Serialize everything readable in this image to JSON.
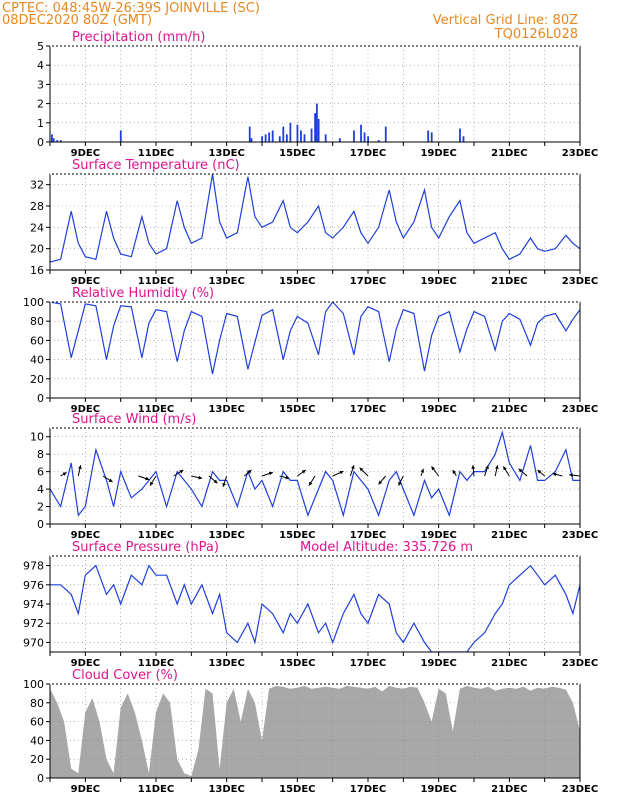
{
  "header": {
    "line1": "CPTEC:   048:45W-26:39S   JOINVILLE (SC)",
    "line2": "08DEC2020 80Z (GMT)",
    "right1": "Vertical Grid Line: 80Z",
    "right2": "TQ0126L028"
  },
  "colors": {
    "header": "#e8871e",
    "title": "#e0138c",
    "series": "#1f3fdc",
    "cloud": "#a8a8a8",
    "grid": "#888888"
  },
  "chart_data": [
    {
      "type": "bar",
      "title": "Precipitation (mm/h)",
      "ylim": [
        0,
        5
      ],
      "yticks": [
        "0",
        "1",
        "2",
        "3",
        "4",
        "5"
      ],
      "xlim": [
        8,
        23
      ],
      "xticks": [
        "9DEC",
        "11DEC",
        "13DEC",
        "15DEC",
        "17DEC",
        "19DEC",
        "21DEC",
        "23DEC"
      ],
      "x": [
        8.05,
        8.1,
        8.2,
        8.3,
        10.0,
        13.65,
        13.7,
        14.0,
        14.1,
        14.2,
        14.3,
        14.5,
        14.6,
        14.7,
        14.8,
        15.0,
        15.1,
        15.2,
        15.4,
        15.5,
        15.55,
        15.6,
        15.8,
        16.2,
        16.6,
        16.8,
        16.9,
        17.0,
        17.3,
        17.5,
        18.7,
        18.8,
        19.6,
        19.7
      ],
      "values": [
        0.4,
        0.2,
        0.1,
        0.1,
        0.6,
        0.8,
        0.2,
        0.3,
        0.4,
        0.5,
        0.6,
        0.3,
        0.8,
        0.4,
        1.0,
        0.9,
        0.6,
        0.4,
        0.7,
        1.5,
        2.0,
        1.2,
        0.4,
        0.2,
        0.6,
        0.9,
        0.5,
        0.3,
        0.1,
        0.8,
        0.6,
        0.5,
        0.7,
        0.3
      ]
    },
    {
      "type": "line",
      "title": "Surface Temperature (nC)",
      "ylim": [
        16,
        34
      ],
      "yticks": [
        "16",
        "20",
        "24",
        "28",
        "32"
      ],
      "xlim": [
        8,
        23
      ],
      "xticks": [
        "9DEC",
        "11DEC",
        "13DEC",
        "15DEC",
        "17DEC",
        "19DEC",
        "21DEC",
        "23DEC"
      ],
      "x": [
        8.0,
        8.3,
        8.6,
        8.8,
        9.0,
        9.3,
        9.6,
        9.8,
        10.0,
        10.3,
        10.6,
        10.8,
        11.0,
        11.3,
        11.6,
        11.8,
        12.0,
        12.3,
        12.6,
        12.8,
        13.0,
        13.3,
        13.6,
        13.8,
        14.0,
        14.3,
        14.6,
        14.8,
        15.0,
        15.3,
        15.6,
        15.8,
        16.0,
        16.3,
        16.6,
        16.8,
        17.0,
        17.3,
        17.6,
        17.8,
        18.0,
        18.3,
        18.6,
        18.8,
        19.0,
        19.3,
        19.6,
        19.8,
        20.0,
        20.3,
        20.6,
        20.8,
        21.0,
        21.3,
        21.6,
        21.8,
        22.0,
        22.3,
        22.6,
        22.8,
        23.0
      ],
      "values": [
        17.5,
        18,
        27,
        21,
        18.5,
        18,
        27,
        22,
        19,
        18.5,
        26,
        21,
        19,
        20,
        29,
        24,
        21,
        22,
        34,
        25,
        22,
        23,
        33.5,
        26,
        24,
        25,
        29,
        24,
        23,
        25,
        28,
        23,
        22,
        24,
        27,
        23,
        21,
        24,
        31,
        25,
        22,
        25,
        31,
        24,
        22,
        26,
        29,
        23,
        21,
        22,
        23,
        20,
        18,
        19,
        22,
        20,
        19.5,
        20,
        22.5,
        21,
        20
      ]
    },
    {
      "type": "line",
      "title": "Relative Humidity (%)",
      "ylim": [
        0,
        100
      ],
      "yticks": [
        "0",
        "20",
        "40",
        "60",
        "80",
        "100"
      ],
      "xlim": [
        8,
        23
      ],
      "xticks": [
        "9DEC",
        "11DEC",
        "13DEC",
        "15DEC",
        "17DEC",
        "19DEC",
        "21DEC",
        "23DEC"
      ],
      "x": [
        8.0,
        8.3,
        8.6,
        8.8,
        9.0,
        9.3,
        9.6,
        9.8,
        10.0,
        10.3,
        10.6,
        10.8,
        11.0,
        11.3,
        11.6,
        11.8,
        12.0,
        12.3,
        12.6,
        12.8,
        13.0,
        13.3,
        13.6,
        13.8,
        14.0,
        14.3,
        14.6,
        14.8,
        15.0,
        15.3,
        15.6,
        15.8,
        16.0,
        16.3,
        16.6,
        16.8,
        17.0,
        17.3,
        17.6,
        17.8,
        18.0,
        18.3,
        18.6,
        18.8,
        19.0,
        19.3,
        19.6,
        19.8,
        20.0,
        20.3,
        20.6,
        20.8,
        21.0,
        21.3,
        21.6,
        21.8,
        22.0,
        22.3,
        22.6,
        22.8,
        23.0
      ],
      "values": [
        100,
        98,
        42,
        70,
        98,
        96,
        40,
        75,
        96,
        95,
        42,
        78,
        92,
        90,
        38,
        70,
        90,
        85,
        25,
        60,
        88,
        85,
        30,
        58,
        86,
        92,
        40,
        70,
        85,
        78,
        45,
        90,
        100,
        88,
        45,
        85,
        95,
        90,
        38,
        72,
        92,
        88,
        28,
        65,
        85,
        90,
        48,
        72,
        90,
        85,
        50,
        80,
        88,
        82,
        55,
        78,
        85,
        88,
        70,
        82,
        92
      ]
    },
    {
      "type": "line",
      "title": "Surface Wind (m/s)",
      "ylim": [
        0,
        11
      ],
      "yticks": [
        "0",
        "2",
        "4",
        "6",
        "8",
        "10"
      ],
      "xlim": [
        8,
        23
      ],
      "xticks": [
        "9DEC",
        "11DEC",
        "13DEC",
        "15DEC",
        "17DEC",
        "19DEC",
        "21DEC",
        "23DEC"
      ],
      "x": [
        8.0,
        8.3,
        8.6,
        8.8,
        9.0,
        9.3,
        9.6,
        9.8,
        10.0,
        10.3,
        10.6,
        10.8,
        11.0,
        11.3,
        11.6,
        11.8,
        12.0,
        12.3,
        12.6,
        12.8,
        13.0,
        13.3,
        13.6,
        13.8,
        14.0,
        14.3,
        14.6,
        14.8,
        15.0,
        15.3,
        15.6,
        15.8,
        16.0,
        16.3,
        16.6,
        16.8,
        17.0,
        17.3,
        17.6,
        17.8,
        18.0,
        18.3,
        18.6,
        18.8,
        19.0,
        19.3,
        19.6,
        19.8,
        20.0,
        20.3,
        20.6,
        20.8,
        21.0,
        21.3,
        21.6,
        21.8,
        22.0,
        22.3,
        22.6,
        22.8,
        23.0
      ],
      "values": [
        4,
        2,
        7,
        1,
        2,
        8.5,
        5,
        2,
        6,
        3,
        4,
        5,
        6,
        2,
        6,
        5,
        4,
        2,
        6,
        5,
        5,
        2,
        6,
        4,
        5,
        2,
        6,
        5,
        5,
        1,
        4,
        6,
        5,
        1,
        6,
        5,
        4,
        1,
        5,
        6,
        4,
        1,
        5,
        3,
        4,
        1,
        6,
        5,
        6,
        6,
        8,
        10.5,
        7,
        5,
        9,
        5,
        5,
        6,
        8.5,
        5,
        5
      ],
      "vectors": {
        "x": [
          8.3,
          8.8,
          9.5,
          10.5,
          11.0,
          11.5,
          12.0,
          12.5,
          13.0,
          13.5,
          14.0,
          14.5,
          15.0,
          15.5,
          16.0,
          16.5,
          17.0,
          17.5,
          18.0,
          18.5,
          19.0,
          19.5,
          20.0,
          20.3,
          20.6,
          21.0,
          21.5,
          22.0,
          22.5,
          23.0
        ],
        "u": [
          0.5,
          0.2,
          0.8,
          0.9,
          -0.5,
          0.8,
          0.9,
          0.7,
          -0.3,
          0.6,
          0.9,
          0.8,
          0.7,
          -0.5,
          0.9,
          0.3,
          -0.7,
          -0.6,
          -0.4,
          0.2,
          -0.6,
          -0.3,
          -0.1,
          0.3,
          0.2,
          -0.5,
          -0.7,
          -0.6,
          -0.8,
          -0.9
        ],
        "v": [
          0.3,
          0.9,
          -0.5,
          -0.3,
          -0.8,
          0.5,
          -0.2,
          -0.6,
          -0.9,
          0.5,
          0.3,
          -0.2,
          0.5,
          -0.8,
          0.4,
          0.9,
          0.7,
          -0.7,
          -0.8,
          0.6,
          0.8,
          0.5,
          0.9,
          0.9,
          0.9,
          0.8,
          0.6,
          0.5,
          0.2,
          0.1
        ]
      }
    },
    {
      "type": "line",
      "title": "Surface Pressure (hPa)",
      "annotation": "Model Altitude: 335.726 m",
      "ylim": [
        969,
        979
      ],
      "yticks": [
        "970",
        "972",
        "974",
        "976",
        "978"
      ],
      "xlim": [
        8,
        23
      ],
      "xticks": [
        "9DEC",
        "11DEC",
        "13DEC",
        "15DEC",
        "17DEC",
        "19DEC",
        "21DEC",
        "23DEC"
      ],
      "x": [
        8.0,
        8.3,
        8.6,
        8.8,
        9.0,
        9.3,
        9.6,
        9.8,
        10.0,
        10.3,
        10.6,
        10.8,
        11.0,
        11.3,
        11.6,
        11.8,
        12.0,
        12.3,
        12.6,
        12.8,
        13.0,
        13.3,
        13.6,
        13.8,
        14.0,
        14.3,
        14.6,
        14.8,
        15.0,
        15.3,
        15.6,
        15.8,
        16.0,
        16.3,
        16.6,
        16.8,
        17.0,
        17.3,
        17.6,
        17.8,
        18.0,
        18.3,
        18.6,
        18.8,
        19.0,
        19.3,
        19.6,
        19.8,
        20.0,
        20.3,
        20.6,
        20.8,
        21.0,
        21.3,
        21.6,
        21.8,
        22.0,
        22.3,
        22.6,
        22.8,
        23.0
      ],
      "values": [
        976,
        976,
        975,
        973,
        977,
        978,
        975,
        976,
        974,
        977,
        976,
        978,
        977,
        977,
        974,
        976,
        974,
        976,
        973,
        975,
        971,
        970,
        972,
        970,
        974,
        973,
        971,
        973,
        972,
        974,
        971,
        972,
        970,
        973,
        975,
        973,
        972,
        975,
        974,
        971,
        970,
        972,
        970,
        969,
        969,
        969,
        969,
        969,
        970,
        971,
        973,
        974,
        976,
        977,
        978,
        977,
        976,
        977,
        975,
        973,
        976
      ]
    },
    {
      "type": "area",
      "title": "Cloud Cover (%)",
      "ylim": [
        0,
        100
      ],
      "yticks": [
        "0",
        "20",
        "40",
        "60",
        "80",
        "100"
      ],
      "xlim": [
        8,
        23
      ],
      "xticks": [
        "9DEC",
        "11DEC",
        "13DEC",
        "15DEC",
        "17DEC",
        "19DEC",
        "21DEC",
        "23DEC"
      ],
      "x": [
        8.0,
        8.2,
        8.4,
        8.6,
        8.8,
        9.0,
        9.2,
        9.4,
        9.6,
        9.8,
        10.0,
        10.2,
        10.4,
        10.6,
        10.8,
        11.0,
        11.2,
        11.4,
        11.6,
        11.8,
        12.0,
        12.2,
        12.4,
        12.6,
        12.8,
        13.0,
        13.2,
        13.4,
        13.6,
        13.8,
        14.0,
        14.2,
        14.4,
        14.6,
        14.8,
        15.0,
        15.2,
        15.4,
        15.6,
        15.8,
        16.0,
        16.2,
        16.4,
        16.6,
        16.8,
        17.0,
        17.2,
        17.4,
        17.6,
        17.8,
        18.0,
        18.2,
        18.4,
        18.6,
        18.8,
        19.0,
        19.2,
        19.4,
        19.6,
        19.8,
        20.0,
        20.2,
        20.4,
        20.6,
        20.8,
        21.0,
        21.2,
        21.4,
        21.6,
        21.8,
        22.0,
        22.2,
        22.4,
        22.6,
        22.8,
        23.0
      ],
      "values": [
        95,
        80,
        60,
        10,
        5,
        70,
        85,
        60,
        20,
        5,
        75,
        90,
        70,
        40,
        5,
        70,
        90,
        80,
        20,
        5,
        2,
        30,
        95,
        90,
        10,
        80,
        95,
        60,
        95,
        80,
        40,
        95,
        98,
        97,
        95,
        96,
        98,
        95,
        96,
        97,
        96,
        95,
        98,
        97,
        96,
        95,
        97,
        92,
        98,
        96,
        95,
        97,
        96,
        80,
        60,
        95,
        90,
        50,
        95,
        98,
        96,
        95,
        97,
        93,
        95,
        96,
        95,
        97,
        93,
        96,
        95,
        97,
        96,
        94,
        80,
        50
      ]
    }
  ]
}
